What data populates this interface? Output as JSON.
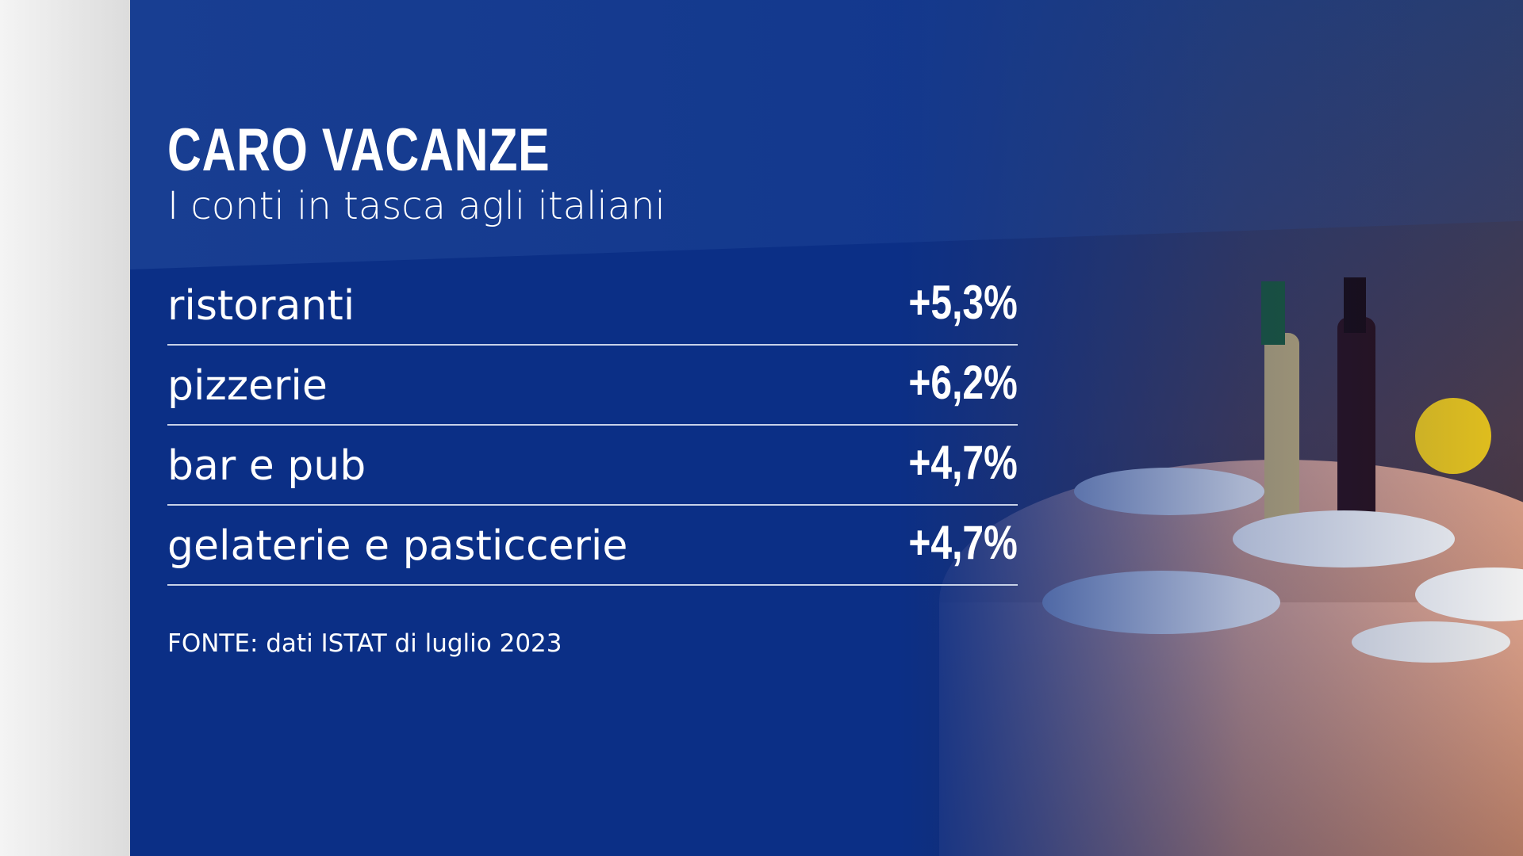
{
  "header": {
    "title": "CARO VACANZE",
    "subtitle": "I conti in tasca agli italiani"
  },
  "table": {
    "rows": [
      [
        "ristoranti",
        "+5,3%"
      ],
      [
        "pizzerie",
        "+6,2%"
      ],
      [
        "bar e pub",
        "+4,7%"
      ],
      [
        "gelaterie e pasticcerie",
        "+4,7%"
      ]
    ]
  },
  "source": "FONTE: dati ISTAT di luglio 2023"
}
